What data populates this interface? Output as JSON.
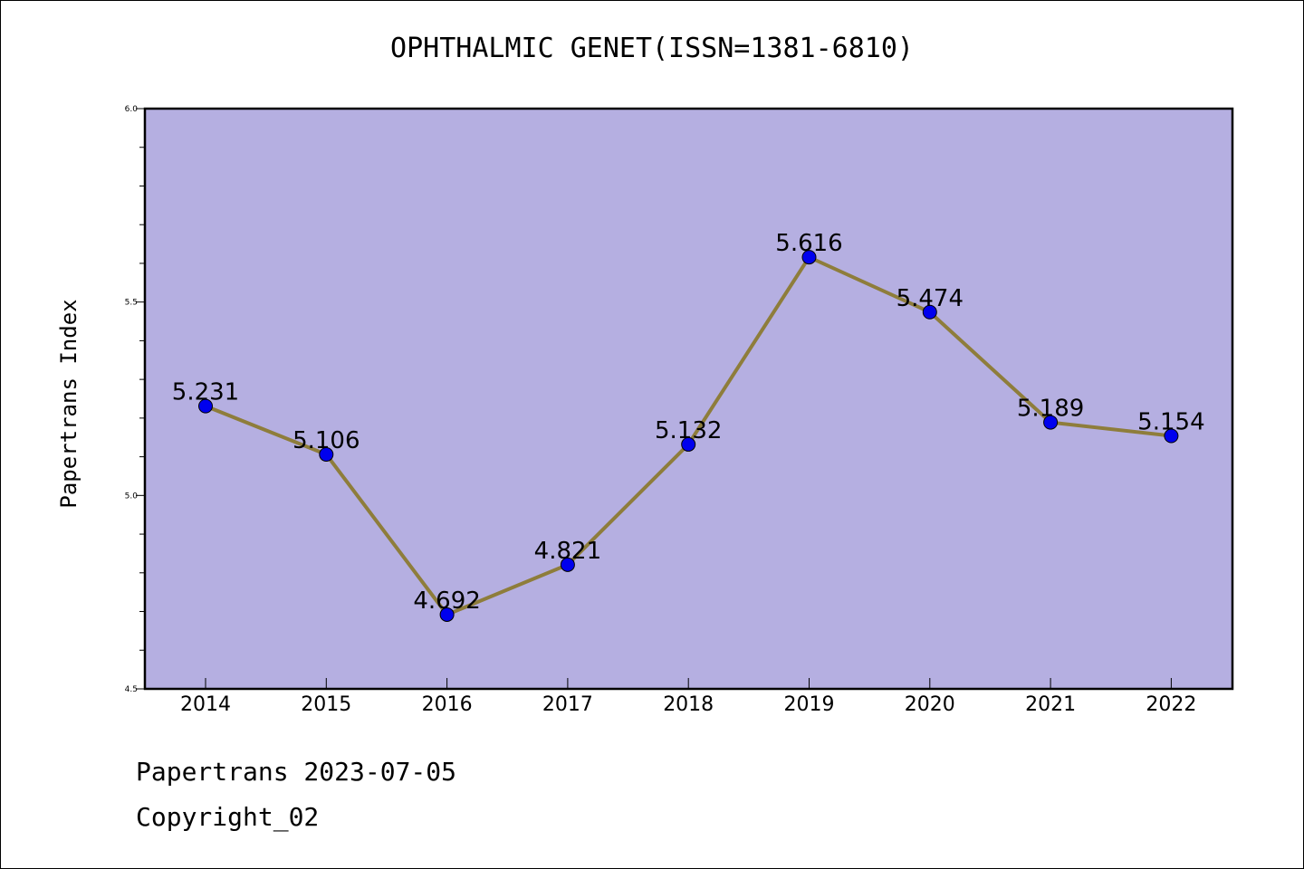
{
  "title": "OPHTHALMIC GENET(ISSN=1381-6810)",
  "footer": {
    "line1": "Papertrans 2023-07-05",
    "line2": "Copyright_02"
  },
  "chart_data": {
    "type": "line",
    "title": "OPHTHALMIC GENET(ISSN=1381-6810)",
    "xlabel": "",
    "ylabel": "Papertrans Index",
    "categories": [
      "2014",
      "2015",
      "2016",
      "2017",
      "2018",
      "2019",
      "2020",
      "2021",
      "2022"
    ],
    "values": [
      5.231,
      5.106,
      4.692,
      4.821,
      5.132,
      5.616,
      5.474,
      5.189,
      5.154
    ],
    "data_labels": [
      "5.231",
      "5.106",
      "4.692",
      "4.821",
      "5.132",
      "5.616",
      "5.474",
      "5.189",
      "5.154"
    ],
    "ylim": [
      4.5,
      6.0
    ],
    "yticks": [
      "4.5",
      "5.0",
      "5.5",
      "6.0"
    ],
    "grid": false,
    "colors": {
      "plot_background": "#b5afe1",
      "line": "#8e7d3b",
      "marker": "#0000ee"
    }
  }
}
